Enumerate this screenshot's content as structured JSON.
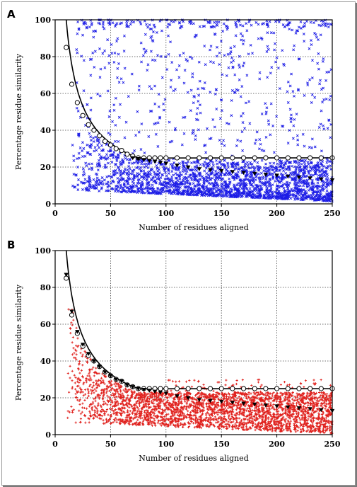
{
  "chart_data": [
    {
      "type": "scatter",
      "panel_label": "A",
      "title": "",
      "xlabel": "Number of residues aligned",
      "ylabel": "Percentage residue similarity",
      "xlim": [
        0,
        250
      ],
      "ylim": [
        0,
        100
      ],
      "xticks": [
        0,
        50,
        100,
        150,
        200,
        250
      ],
      "yticks": [
        0,
        20,
        40,
        60,
        80,
        100
      ],
      "grid": true,
      "scatter_color": "#1c1ce6",
      "scatter_marker": "x",
      "curve_x": [
        10,
        15,
        20,
        25,
        30,
        35,
        40,
        45,
        50,
        55,
        60,
        65,
        70,
        75,
        80,
        85,
        90,
        95,
        100,
        110,
        120,
        130,
        140,
        150,
        160,
        170,
        180,
        190,
        200,
        210,
        220,
        230,
        240,
        250
      ],
      "series": [
        {
          "marker": "circle",
          "color": "#000000",
          "x": [
            10,
            15,
            20,
            25,
            30,
            35,
            40,
            45,
            50,
            55,
            60,
            65,
            70,
            75,
            80,
            85,
            90,
            95,
            100,
            110,
            120,
            130,
            140,
            150,
            160,
            170,
            180,
            190,
            200,
            210,
            220,
            230,
            240,
            250
          ],
          "y": [
            85,
            65,
            55,
            48,
            43,
            40,
            37,
            34,
            32,
            30,
            29,
            27,
            26,
            25,
            25,
            25,
            25,
            25,
            25,
            25,
            25,
            25,
            25,
            25,
            25,
            25,
            25,
            25,
            25,
            25,
            25,
            25,
            25,
            25
          ]
        },
        {
          "marker": "triangle-down",
          "color": "#000000",
          "x": [
            70,
            75,
            80,
            85,
            90,
            95,
            100,
            110,
            120,
            130,
            140,
            150,
            160,
            170,
            180,
            190,
            200,
            210,
            220,
            230,
            240,
            250
          ],
          "y": [
            25,
            24.5,
            24,
            23.5,
            23,
            22.5,
            22,
            21,
            20,
            19,
            18.5,
            18,
            17.5,
            17,
            16.5,
            16,
            15.5,
            15,
            14.5,
            14,
            13.5,
            13
          ]
        }
      ]
    },
    {
      "type": "scatter",
      "panel_label": "B",
      "title": "",
      "xlabel": "Number of residues aligned",
      "ylabel": "Percentage residue similarity",
      "xlim": [
        0,
        250
      ],
      "ylim": [
        0,
        100
      ],
      "xticks": [
        0,
        50,
        100,
        150,
        200,
        250
      ],
      "yticks": [
        0,
        20,
        40,
        60,
        80,
        100
      ],
      "grid": true,
      "scatter_color": "#e0201c",
      "scatter_marker": "plus",
      "curve_x": [
        10,
        15,
        20,
        25,
        30,
        35,
        40,
        45,
        50,
        55,
        60,
        65,
        70,
        75,
        80,
        85,
        90,
        95,
        100,
        110,
        120,
        130,
        140,
        150,
        160,
        170,
        180,
        190,
        200,
        210,
        220,
        230,
        240,
        250
      ],
      "series": [
        {
          "marker": "circle",
          "color": "#000000",
          "x": [
            10,
            15,
            20,
            25,
            30,
            35,
            40,
            45,
            50,
            55,
            60,
            65,
            70,
            75,
            80,
            85,
            90,
            95,
            100,
            110,
            120,
            130,
            140,
            150,
            160,
            170,
            180,
            190,
            200,
            210,
            220,
            230,
            240,
            250
          ],
          "y": [
            85,
            65,
            55,
            48,
            43,
            40,
            37,
            34,
            32,
            30,
            29,
            27,
            26,
            25,
            25,
            25,
            25,
            25,
            25,
            25,
            25,
            25,
            25,
            25,
            25,
            25,
            25,
            25,
            25,
            25,
            25,
            25,
            25,
            25
          ]
        },
        {
          "marker": "triangle-down",
          "color": "#000000",
          "x": [
            10,
            15,
            20,
            25,
            30,
            35,
            40,
            45,
            50,
            55,
            60,
            65,
            70,
            75,
            80,
            85,
            90,
            95,
            100,
            110,
            120,
            130,
            140,
            150,
            160,
            170,
            180,
            190,
            200,
            210,
            220,
            230,
            240,
            250
          ],
          "y": [
            87,
            67,
            56,
            49,
            44,
            40,
            37,
            34,
            32,
            30,
            29,
            27,
            26,
            25,
            24.5,
            24,
            23.5,
            23,
            22.5,
            21,
            20,
            19,
            18.5,
            18,
            17.5,
            17,
            16.5,
            16,
            15.5,
            15,
            14.5,
            14,
            13.5,
            13
          ]
        }
      ]
    }
  ]
}
